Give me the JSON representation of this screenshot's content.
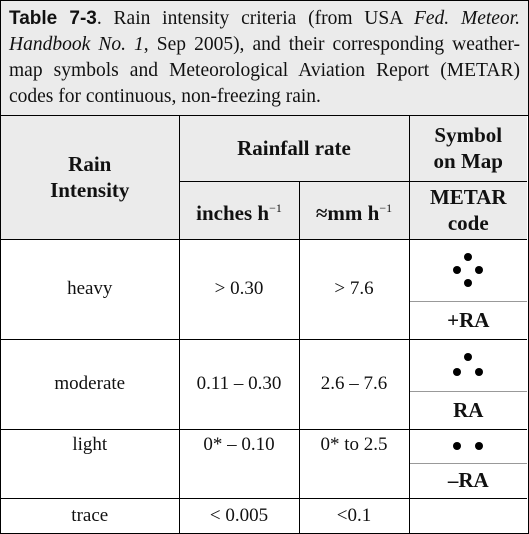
{
  "caption": {
    "label": "Table 7-3",
    "text_1": ".  Rain intensity criteria (from USA ",
    "source": "Fed. Meteor. Handbook No. 1",
    "text_2": ", Sep 2005), and their corresponding weather-map symbols and Meteorological Aviation Report (METAR) codes for continuous, non-freezing rain."
  },
  "table": {
    "header": {
      "intensity": "Rain Intensity",
      "rainfall_rate": "Rainfall rate",
      "symbol": "Symbol on Map",
      "inches": {
        "text": "inches h",
        "sup": "−1"
      },
      "mm": {
        "text": "≈mm h",
        "sup": "−1"
      },
      "metar": "METAR code"
    },
    "rows": [
      [
        "heavy",
        "> 0.30",
        "> 7.6",
        "+RA"
      ],
      [
        "moderate",
        "0.11 – 0.30",
        "2.6 – 7.6",
        "RA"
      ],
      [
        "light",
        "0* – 0.10",
        "0* to 2.5",
        "–RA"
      ],
      [
        "trace",
        "< 0.005",
        "<0.1"
      ]
    ]
  }
}
